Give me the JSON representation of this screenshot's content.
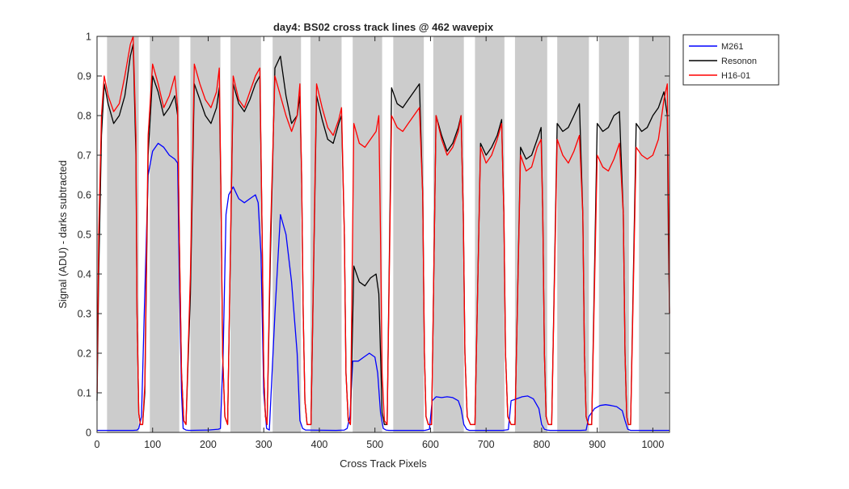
{
  "chart_data": {
    "type": "line",
    "title": "day4: BS02  cross track lines @ 462 wavepix",
    "xlabel": "Cross Track Pixels",
    "ylabel": "Signal (ADU) - darks subtracted",
    "xlim": [
      0,
      1030
    ],
    "ylim": [
      0,
      1
    ],
    "xticks": [
      0,
      100,
      200,
      300,
      400,
      500,
      600,
      700,
      800,
      900,
      1000
    ],
    "yticks": [
      0,
      0.1,
      0.2,
      0.3,
      0.4,
      0.5,
      0.6,
      0.7,
      0.8,
      0.9,
      1
    ],
    "grid": false,
    "legend_position": "outside-top-right",
    "shaded_bands": [
      [
        18,
        75
      ],
      [
        95,
        148
      ],
      [
        168,
        222
      ],
      [
        240,
        295
      ],
      [
        316,
        367
      ],
      [
        384,
        440
      ],
      [
        460,
        513
      ],
      [
        533,
        588
      ],
      [
        605,
        660
      ],
      [
        680,
        733
      ],
      [
        752,
        810
      ],
      [
        828,
        885
      ],
      [
        903,
        957
      ],
      [
        975,
        1028
      ]
    ],
    "band_color": "#cccccc",
    "series": [
      {
        "name": "M261",
        "color": "#0000ff",
        "x": [
          0,
          65,
          72,
          75,
          80,
          85,
          92,
          100,
          110,
          120,
          130,
          140,
          145,
          148,
          152,
          155,
          160,
          165,
          200,
          218,
          222,
          227,
          232,
          237,
          245,
          255,
          265,
          275,
          285,
          290,
          295,
          300,
          305,
          310,
          320,
          330,
          340,
          350,
          360,
          365,
          370,
          375,
          430,
          445,
          450,
          455,
          460,
          470,
          480,
          490,
          500,
          505,
          510,
          515,
          520,
          525,
          590,
          598,
          603,
          610,
          620,
          630,
          640,
          650,
          655,
          660,
          665,
          670,
          730,
          740,
          745,
          755,
          765,
          775,
          785,
          795,
          800,
          805,
          810,
          815,
          870,
          880,
          885,
          895,
          905,
          915,
          925,
          935,
          945,
          950,
          955,
          960,
          1030
        ],
        "y": [
          0.005,
          0.005,
          0.006,
          0.01,
          0.04,
          0.3,
          0.65,
          0.71,
          0.73,
          0.72,
          0.7,
          0.69,
          0.68,
          0.4,
          0.1,
          0.01,
          0.006,
          0.005,
          0.006,
          0.008,
          0.01,
          0.2,
          0.55,
          0.6,
          0.62,
          0.59,
          0.58,
          0.59,
          0.6,
          0.58,
          0.45,
          0.1,
          0.01,
          0.006,
          0.3,
          0.55,
          0.5,
          0.38,
          0.2,
          0.03,
          0.01,
          0.006,
          0.005,
          0.006,
          0.01,
          0.04,
          0.18,
          0.18,
          0.19,
          0.2,
          0.19,
          0.15,
          0.05,
          0.01,
          0.006,
          0.005,
          0.005,
          0.008,
          0.08,
          0.09,
          0.088,
          0.09,
          0.088,
          0.08,
          0.06,
          0.02,
          0.008,
          0.005,
          0.005,
          0.007,
          0.08,
          0.085,
          0.09,
          0.092,
          0.085,
          0.06,
          0.02,
          0.008,
          0.006,
          0.005,
          0.005,
          0.006,
          0.04,
          0.06,
          0.068,
          0.07,
          0.068,
          0.065,
          0.055,
          0.03,
          0.008,
          0.005,
          0.005
        ]
      },
      {
        "name": "Resonon",
        "color": "#000000",
        "x": [
          0,
          3,
          8,
          13,
          20,
          30,
          40,
          50,
          60,
          65,
          70,
          72,
          75,
          78,
          82,
          86,
          92,
          100,
          110,
          120,
          130,
          140,
          145,
          148,
          152,
          156,
          160,
          168,
          175,
          185,
          195,
          205,
          215,
          220,
          223,
          226,
          230,
          235,
          245,
          255,
          265,
          275,
          285,
          293,
          297,
          300,
          303,
          306,
          312,
          320,
          330,
          340,
          350,
          360,
          365,
          368,
          371,
          374,
          378,
          385,
          395,
          405,
          415,
          425,
          435,
          440,
          445,
          448,
          452,
          456,
          462,
          472,
          482,
          492,
          502,
          507,
          510,
          513,
          517,
          522,
          530,
          540,
          550,
          560,
          570,
          580,
          586,
          589,
          592,
          596,
          602,
          610,
          620,
          630,
          640,
          650,
          655,
          659,
          662,
          666,
          672,
          680,
          690,
          700,
          710,
          720,
          728,
          732,
          735,
          739,
          745,
          752,
          762,
          772,
          782,
          792,
          799,
          802,
          805,
          808,
          812,
          818,
          828,
          838,
          848,
          858,
          868,
          874,
          877,
          880,
          884,
          890,
          900,
          910,
          920,
          930,
          940,
          947,
          950,
          953,
          956,
          960,
          970,
          980,
          990,
          1000,
          1010,
          1020,
          1026,
          1028,
          1030
        ],
        "y": [
          0.08,
          0.4,
          0.75,
          0.88,
          0.83,
          0.78,
          0.8,
          0.85,
          0.95,
          0.98,
          0.7,
          0.3,
          0.05,
          0.02,
          0.02,
          0.1,
          0.7,
          0.9,
          0.86,
          0.8,
          0.82,
          0.85,
          0.8,
          0.5,
          0.15,
          0.03,
          0.02,
          0.35,
          0.88,
          0.84,
          0.8,
          0.78,
          0.82,
          0.87,
          0.6,
          0.2,
          0.04,
          0.02,
          0.88,
          0.83,
          0.81,
          0.84,
          0.88,
          0.9,
          0.5,
          0.15,
          0.04,
          0.02,
          0.45,
          0.92,
          0.95,
          0.85,
          0.78,
          0.8,
          0.85,
          0.65,
          0.3,
          0.08,
          0.02,
          0.02,
          0.85,
          0.79,
          0.74,
          0.73,
          0.78,
          0.8,
          0.5,
          0.15,
          0.03,
          0.02,
          0.42,
          0.38,
          0.37,
          0.39,
          0.4,
          0.35,
          0.2,
          0.05,
          0.02,
          0.02,
          0.87,
          0.83,
          0.82,
          0.84,
          0.86,
          0.88,
          0.6,
          0.2,
          0.04,
          0.02,
          0.02,
          0.8,
          0.75,
          0.71,
          0.73,
          0.77,
          0.8,
          0.55,
          0.2,
          0.04,
          0.02,
          0.02,
          0.73,
          0.7,
          0.72,
          0.75,
          0.79,
          0.55,
          0.2,
          0.04,
          0.02,
          0.02,
          0.72,
          0.69,
          0.7,
          0.74,
          0.77,
          0.55,
          0.2,
          0.04,
          0.02,
          0.02,
          0.78,
          0.76,
          0.77,
          0.8,
          0.83,
          0.55,
          0.2,
          0.04,
          0.02,
          0.02,
          0.78,
          0.76,
          0.77,
          0.8,
          0.81,
          0.55,
          0.2,
          0.04,
          0.02,
          0.02,
          0.78,
          0.76,
          0.77,
          0.8,
          0.82,
          0.86,
          0.8,
          0.5,
          0.3
        ]
      },
      {
        "name": "H16-01",
        "color": "#ff0000",
        "x": [
          0,
          3,
          8,
          13,
          20,
          30,
          40,
          50,
          60,
          65,
          70,
          72,
          75,
          78,
          82,
          86,
          92,
          100,
          110,
          120,
          130,
          140,
          145,
          148,
          152,
          156,
          160,
          168,
          175,
          185,
          195,
          205,
          215,
          220,
          223,
          226,
          230,
          235,
          245,
          255,
          265,
          275,
          285,
          293,
          297,
          300,
          303,
          306,
          312,
          320,
          330,
          340,
          350,
          360,
          365,
          368,
          371,
          374,
          378,
          385,
          395,
          405,
          415,
          425,
          435,
          440,
          445,
          448,
          452,
          456,
          462,
          472,
          482,
          492,
          502,
          507,
          510,
          513,
          517,
          522,
          530,
          540,
          550,
          560,
          570,
          580,
          586,
          589,
          592,
          596,
          602,
          610,
          620,
          630,
          640,
          650,
          655,
          659,
          662,
          666,
          672,
          680,
          690,
          700,
          710,
          720,
          728,
          732,
          735,
          739,
          745,
          752,
          762,
          772,
          782,
          792,
          799,
          802,
          805,
          808,
          812,
          818,
          828,
          838,
          848,
          858,
          868,
          874,
          877,
          880,
          884,
          890,
          900,
          910,
          920,
          930,
          940,
          947,
          950,
          953,
          956,
          960,
          970,
          980,
          990,
          1000,
          1010,
          1020,
          1026,
          1028,
          1030
        ],
        "y": [
          0.1,
          0.5,
          0.8,
          0.9,
          0.85,
          0.81,
          0.83,
          0.9,
          0.98,
          1.0,
          0.75,
          0.3,
          0.05,
          0.02,
          0.02,
          0.12,
          0.75,
          0.93,
          0.88,
          0.82,
          0.85,
          0.9,
          0.82,
          0.5,
          0.15,
          0.03,
          0.02,
          0.4,
          0.93,
          0.88,
          0.84,
          0.82,
          0.86,
          0.92,
          0.6,
          0.2,
          0.04,
          0.02,
          0.9,
          0.84,
          0.82,
          0.86,
          0.9,
          0.92,
          0.5,
          0.15,
          0.04,
          0.02,
          0.5,
          0.9,
          0.85,
          0.8,
          0.76,
          0.8,
          0.88,
          0.65,
          0.3,
          0.08,
          0.02,
          0.02,
          0.88,
          0.82,
          0.77,
          0.75,
          0.79,
          0.82,
          0.5,
          0.15,
          0.03,
          0.02,
          0.78,
          0.73,
          0.72,
          0.74,
          0.76,
          0.8,
          0.5,
          0.15,
          0.03,
          0.02,
          0.8,
          0.77,
          0.76,
          0.78,
          0.8,
          0.82,
          0.6,
          0.2,
          0.04,
          0.02,
          0.02,
          0.8,
          0.74,
          0.7,
          0.72,
          0.76,
          0.8,
          0.55,
          0.2,
          0.04,
          0.02,
          0.02,
          0.72,
          0.68,
          0.7,
          0.74,
          0.78,
          0.55,
          0.2,
          0.04,
          0.02,
          0.02,
          0.7,
          0.66,
          0.67,
          0.72,
          0.74,
          0.55,
          0.2,
          0.04,
          0.02,
          0.02,
          0.74,
          0.7,
          0.68,
          0.71,
          0.75,
          0.55,
          0.2,
          0.04,
          0.02,
          0.02,
          0.7,
          0.67,
          0.66,
          0.69,
          0.73,
          0.55,
          0.2,
          0.04,
          0.02,
          0.02,
          0.72,
          0.7,
          0.69,
          0.7,
          0.74,
          0.84,
          0.88,
          0.6,
          0.3
        ]
      }
    ]
  }
}
